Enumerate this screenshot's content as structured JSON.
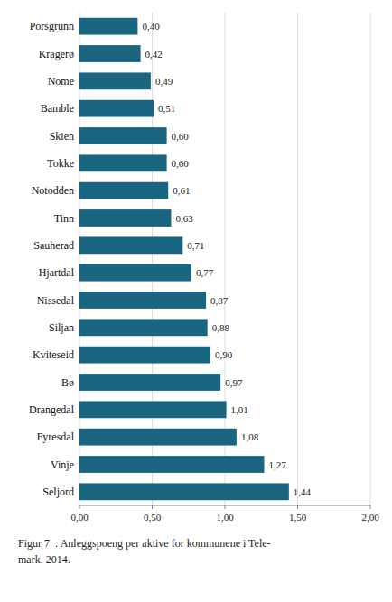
{
  "chart_data": {
    "type": "bar",
    "orientation": "horizontal",
    "categories": [
      "Seljord",
      "Vinje",
      "Fyresdal",
      "Drangedal",
      "Bø",
      "Kviteseid",
      "Siljan",
      "Nissedal",
      "Hjartdal",
      "Sauherad",
      "Tinn",
      "Notodden",
      "Tokke",
      "Skien",
      "Bamble",
      "Nome",
      "Kragerø",
      "Porsgrunn"
    ],
    "values": [
      1.44,
      1.27,
      1.08,
      1.01,
      0.97,
      0.9,
      0.88,
      0.87,
      0.77,
      0.71,
      0.63,
      0.61,
      0.6,
      0.6,
      0.51,
      0.49,
      0.42,
      0.4
    ],
    "value_labels": [
      "1,44",
      "1,27",
      "1,08",
      "1,01",
      "0,97",
      "0,90",
      "0,88",
      "0,87",
      "0,77",
      "0,71",
      "0,63",
      "0,61",
      "0,60",
      "0,60",
      "0,51",
      "0,49",
      "0,42",
      "0,40"
    ],
    "data_labels": true,
    "color": "#1a6680",
    "xlim": [
      0,
      2.0
    ],
    "xticks": [
      {
        "value": 0.0,
        "label": "0,00"
      },
      {
        "value": 0.5,
        "label": "0,50"
      },
      {
        "value": 1.0,
        "label": "1,00"
      },
      {
        "value": 1.5,
        "label": "1,50"
      },
      {
        "value": 2.0,
        "label": "2,00"
      }
    ],
    "grid": true,
    "annotations": [
      "Figur 7  : Anleggspoeng per aktive for kommunene i Tele-",
      "mark. 2014."
    ]
  }
}
